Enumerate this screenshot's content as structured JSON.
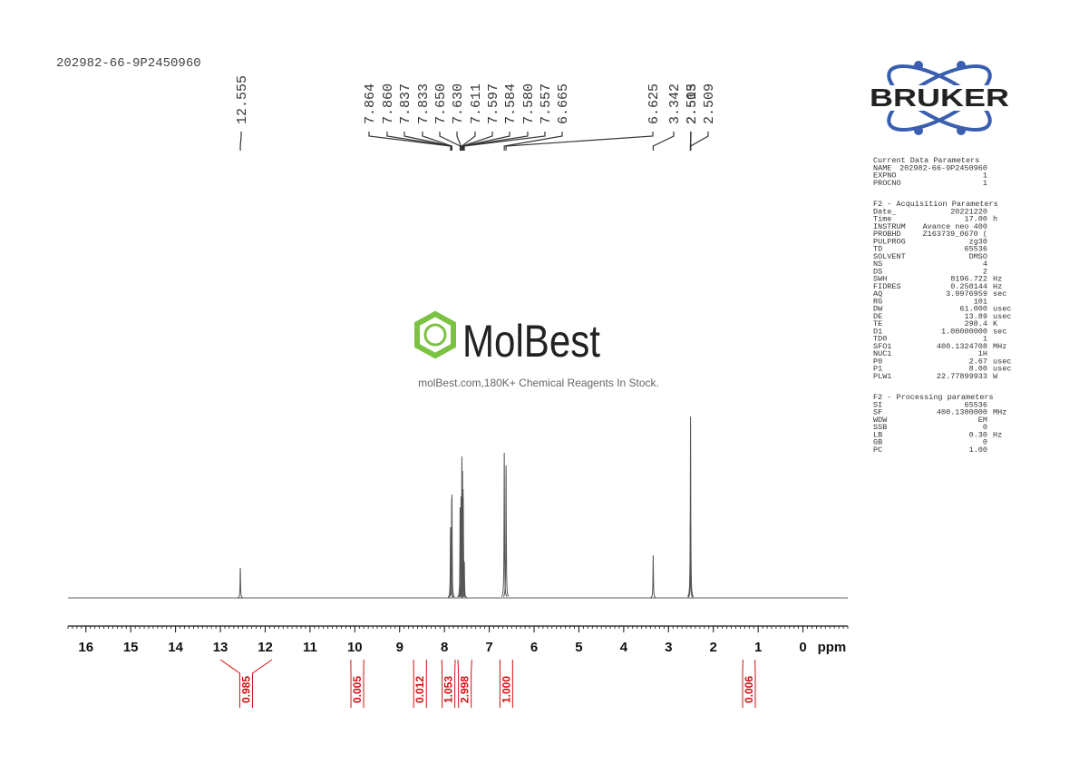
{
  "sample_id": "202982-66-9P2450960",
  "watermark": {
    "brand": "MolBest",
    "tagline": "molBest.com,180K+ Chemical Reagents In Stock."
  },
  "logo": "BRUKER",
  "chart_data": {
    "type": "nmr",
    "xlabel": "ppm",
    "xlim": [
      16.4,
      -1.0
    ],
    "xticks": [
      16,
      15,
      14,
      13,
      12,
      11,
      10,
      9,
      8,
      7,
      6,
      5,
      4,
      3,
      2,
      1,
      0
    ],
    "ylim": [
      0,
      100
    ],
    "color": "#555555",
    "x": [
      12.555,
      7.864,
      {
        "value": 7.86,
        "label": "7.860"
      },
      7.837,
      7.833,
      {
        "value": 7.65,
        "label": "7.650"
      },
      {
        "value": 7.63,
        "label": "7.630"
      },
      7.611,
      7.597,
      7.584,
      {
        "value": 7.58,
        "label": "7.580"
      },
      7.557,
      6.665,
      6.625,
      3.342,
      2.513,
      2.509,
      2.505
    ],
    "values": [
      16.5,
      39,
      38,
      55,
      57,
      50,
      56,
      78,
      70,
      60,
      55,
      20,
      80,
      73,
      23.5,
      40,
      100,
      40
    ],
    "integral_color": "#d01010",
    "integrals": [
      {
        "range": [
          13.0,
          11.85
        ],
        "value": 0.985
      },
      {
        "range": [
          10.09,
          9.8
        ],
        "value": 0.005
      },
      {
        "range": [
          8.69,
          8.4
        ],
        "value": 0.012
      },
      {
        "range": [
          8.06,
          7.76
        ],
        "value": 1.053
      },
      {
        "range": [
          7.7,
          7.39
        ],
        "value": 2.998
      },
      {
        "range": [
          6.76,
          6.48
        ],
        "value": 1,
        "label": "1.000"
      },
      {
        "range": [
          1.34,
          1.07
        ],
        "value": 0.006
      }
    ]
  },
  "parameters": {
    "sections": [
      {
        "title": "Current Data Parameters",
        "rows": [
          [
            "NAME",
            "202982-66-9P2450960"
          ],
          [
            "EXPNO",
            "1"
          ],
          [
            "PROCNO",
            "1"
          ]
        ]
      },
      {
        "title": "F2 - Acquisition Parameters",
        "rows": [
          [
            "Date_",
            "20221220"
          ],
          [
            "Time",
            "17.00",
            "h"
          ],
          [
            "INSTRUM",
            "Avance neo 400"
          ],
          [
            "PROBHD",
            "Z163739_0670 ("
          ],
          [
            "PULPROG",
            "zg30"
          ],
          [
            "TD",
            "65536"
          ],
          [
            "SOLVENT",
            "DMSO"
          ],
          [
            "NS",
            "4"
          ],
          [
            "DS",
            "2"
          ],
          [
            "SWH",
            "8196.722",
            "Hz"
          ],
          [
            "FIDRES",
            "0.250144",
            "Hz"
          ],
          [
            "AQ",
            "3.9976959",
            "sec"
          ],
          [
            "RG",
            "101"
          ],
          [
            "DW",
            "61.000",
            "usec"
          ],
          [
            "DE",
            "13.89",
            "usec"
          ],
          [
            "TE",
            "298.4",
            "K"
          ],
          [
            "D1",
            "1.00000000",
            "sec"
          ],
          [
            "TD0",
            "1"
          ],
          [
            "SFO1",
            "400.1324708",
            "MHz"
          ],
          [
            "NUC1",
            "1H"
          ],
          [
            "P0",
            "2.67",
            "usec"
          ],
          [
            "P1",
            "8.00",
            "usec"
          ],
          [
            "PLW1",
            "22.77899933",
            "W"
          ]
        ]
      },
      {
        "title": "F2 - Processing parameters",
        "rows": [
          [
            "SI",
            "65536"
          ],
          [
            "SF",
            "400.1300000",
            "MHz"
          ],
          [
            "WDW",
            "EM"
          ],
          [
            "SSB",
            "0"
          ],
          [
            "LB",
            "0.30",
            "Hz"
          ],
          [
            "GB",
            "0"
          ],
          [
            "PC",
            "1.00"
          ]
        ]
      }
    ]
  }
}
